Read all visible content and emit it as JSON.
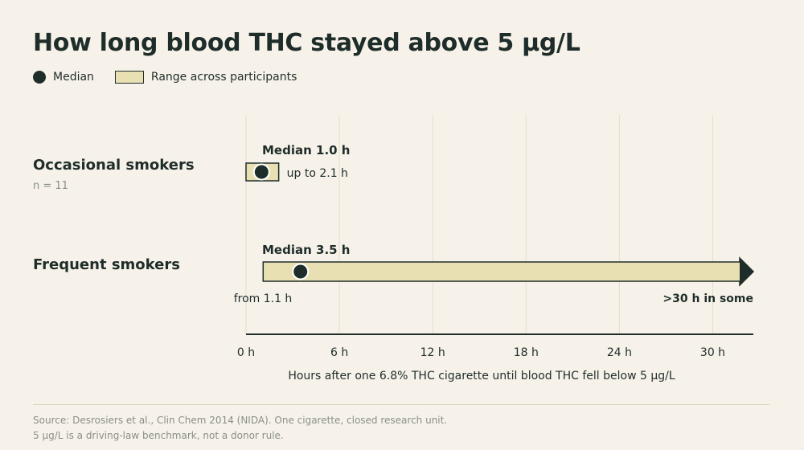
{
  "title": "How long blood THC stayed above 5 µg/L",
  "legend": {
    "median_label": "Median",
    "range_label": "Range across participants"
  },
  "rows": [
    {
      "label": "Occasional smokers",
      "note": "n = 11"
    },
    {
      "label": "Frequent smokers",
      "note": ""
    }
  ],
  "colors": {
    "background": "#f6f2e9",
    "ink": "#1f2d2a",
    "range_fill": "#e8e0b2",
    "grid": "#e4dfc8",
    "muted": "#8a8f88"
  },
  "chart_data": {
    "type": "range-dot",
    "title": "How long blood THC stayed above 5 µg/L",
    "xlabel": "Hours after one 6.8% THC cigarette until blood THC fell below 5 µg/L",
    "ylabel": "",
    "xlim": [
      0,
      32
    ],
    "xticks": [
      0,
      6,
      12,
      18,
      24,
      30
    ],
    "xtick_labels": [
      "0 h",
      "6 h",
      "12 h",
      "18 h",
      "24 h",
      "30 h"
    ],
    "grid": true,
    "legend_position": "top-left",
    "series": [
      {
        "category": "Occasional smokers",
        "median": 1.0,
        "range_min": 0,
        "range_max": 2.1,
        "open_ended": false,
        "median_label": "Median 1.0 h",
        "max_label": "up to 2.1 h",
        "min_label": ""
      },
      {
        "category": "Frequent smokers",
        "median": 3.5,
        "range_min": 1.1,
        "range_max": 30,
        "open_ended": true,
        "median_label": "Median 3.5 h",
        "min_label": "from 1.1 h",
        "max_label": ">30 h in some"
      }
    ]
  },
  "source": {
    "line1": "Source: Desrosiers et al., Clin Chem 2014 (NIDA). One cigarette, closed research unit.",
    "line2": "5 µg/L is a driving-law benchmark, not a donor rule."
  }
}
